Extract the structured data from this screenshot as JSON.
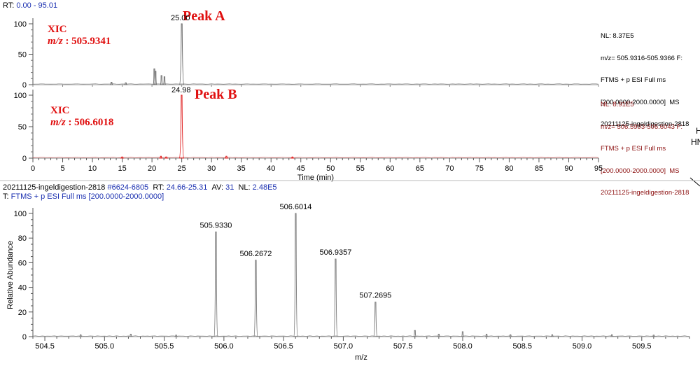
{
  "header": {
    "rt_label": "RT:",
    "rt_value": "0.00 - 95.01"
  },
  "chart_data": [
    {
      "type": "line",
      "name": "xic-peak-a",
      "xlim": [
        0,
        95
      ],
      "ylim": [
        0,
        100
      ],
      "y_ticks": [
        0,
        50,
        100
      ],
      "color": "#6e6e6e",
      "apex": {
        "x": 25.0,
        "label": "25.00"
      },
      "annotation_main": "Peak A",
      "annotation_xic": "XIC",
      "annotation_mz_italic": "m/z",
      "annotation_mz_value": " : 505.9341",
      "info_lines": [
        "NL: 8.37E5",
        "m/z= 505.9316-505.9366 F:",
        "FTMS + p ESI Full ms",
        "[200.0000-2000.0000]  MS",
        "20211125-ingeldigestion-2818"
      ],
      "peaks": [
        [
          13.2,
          4
        ],
        [
          15.6,
          3
        ],
        [
          20.4,
          26
        ],
        [
          20.6,
          22
        ],
        [
          21.6,
          15
        ],
        [
          22.1,
          13
        ],
        [
          25.0,
          100
        ]
      ]
    },
    {
      "type": "line",
      "name": "xic-peak-b",
      "xlim": [
        0,
        95
      ],
      "ylim": [
        0,
        100
      ],
      "y_ticks": [
        0,
        50,
        100
      ],
      "x_ticks": [
        0,
        5,
        10,
        15,
        20,
        25,
        30,
        35,
        40,
        45,
        50,
        55,
        60,
        65,
        70,
        75,
        80,
        85,
        90,
        95
      ],
      "xlabel": "Time (min)",
      "color": "#e02020",
      "apex": {
        "x": 24.98,
        "label": "24.98"
      },
      "annotation_main": "Peak B",
      "annotation_xic": "XIC",
      "annotation_mz_italic": "m/z",
      "annotation_mz_value": " : 506.6018",
      "info_lines": [
        "NL: 8.91E5",
        "m/z= 506.5993-506.6043 F:",
        "FTMS + p ESI Full ms",
        "[200.0000-2000.0000]  MS",
        "20211125-ingeldigestion-2818"
      ],
      "peaks": [
        [
          15.0,
          2
        ],
        [
          21.5,
          3
        ],
        [
          22.4,
          2
        ],
        [
          24.98,
          100
        ],
        [
          32.5,
          3
        ],
        [
          43.6,
          2
        ]
      ]
    },
    {
      "type": "line",
      "name": "mass-spectrum",
      "xlim": [
        504.4,
        509.9
      ],
      "ylim": [
        0,
        100
      ],
      "y_ticks": [
        0,
        20,
        40,
        60,
        80,
        100
      ],
      "x_ticks": [
        504.5,
        505.0,
        505.5,
        506.0,
        506.5,
        507.0,
        507.5,
        508.0,
        508.5,
        509.0,
        509.5
      ],
      "x_tick_labels": [
        "504.5",
        "505.0",
        "505.5",
        "506.0",
        "506.5",
        "507.0",
        "507.5",
        "508.0",
        "508.5",
        "509.0",
        "509.5"
      ],
      "xlabel": "m/z",
      "ylabel": "Relative Abundance",
      "color": "#7a7a7a",
      "header_line1": {
        "file": "20211125-ingeldigestion-2818",
        "scans": "#6624-6805",
        "rt_label": "RT:",
        "rt": "24.66-25.31",
        "av_label": "AV:",
        "av": "31",
        "nl_label": "NL:",
        "nl": "2.48E5"
      },
      "header_line2": {
        "prefix": "T: ",
        "filter": "FTMS + p ESI Full ms [200.0000-2000.0000]"
      },
      "labeled_peaks": [
        {
          "mz": 505.933,
          "label": "505.9330",
          "intensity": 85
        },
        {
          "mz": 506.2672,
          "label": "506.2672",
          "intensity": 62
        },
        {
          "mz": 506.6014,
          "label": "506.6014",
          "intensity": 100
        },
        {
          "mz": 506.9357,
          "label": "506.9357",
          "intensity": 63
        },
        {
          "mz": 507.2695,
          "label": "507.2695",
          "intensity": 28
        }
      ],
      "minor_peaks": [
        [
          504.8,
          1.5
        ],
        [
          505.22,
          2
        ],
        [
          505.6,
          1.2
        ],
        [
          507.6,
          5
        ],
        [
          507.8,
          2
        ],
        [
          508.0,
          4
        ],
        [
          508.2,
          2
        ],
        [
          508.4,
          1.5
        ],
        [
          508.75,
          1.5
        ],
        [
          509.25,
          1.5
        ],
        [
          509.6,
          1.2
        ]
      ]
    }
  ],
  "right_fragment": {
    "line1": "H",
    "line2": "HN"
  }
}
